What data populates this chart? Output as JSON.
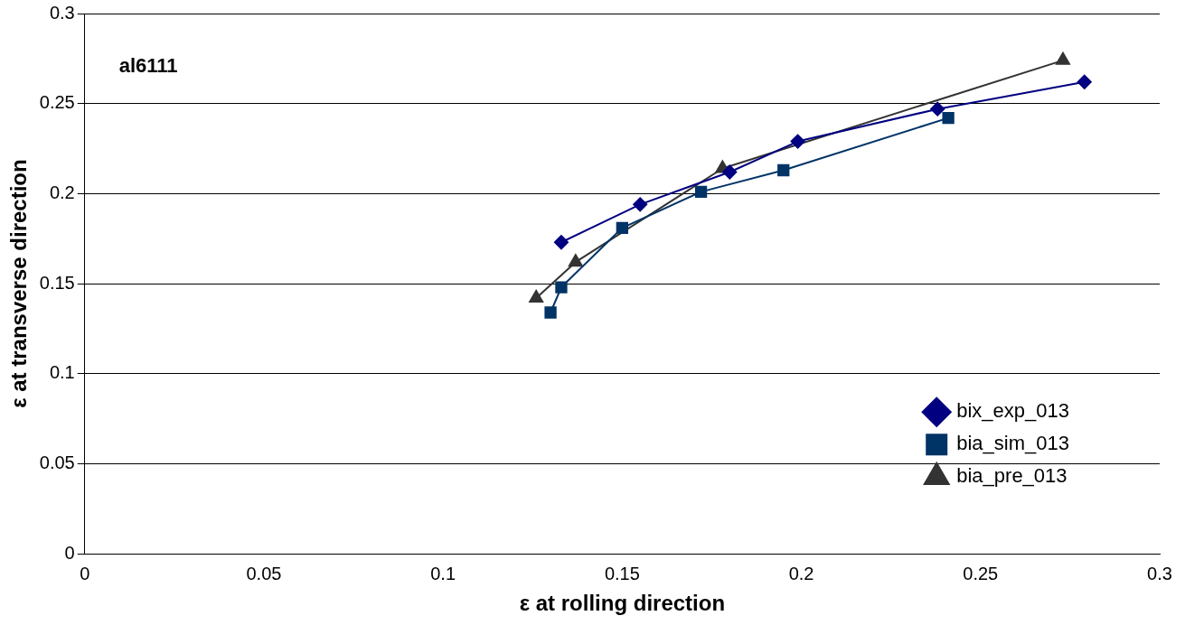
{
  "chart_data": {
    "type": "line",
    "xlabel": "ε at rolling direction",
    "ylabel": "ε at transverse direction",
    "annotations": [
      "al6111"
    ],
    "xlim": [
      0,
      0.3
    ],
    "xticks": [
      0,
      0.05,
      0.1,
      0.15,
      0.2,
      0.25,
      0.3
    ],
    "ylim": [
      0,
      0.3
    ],
    "yticks": [
      0,
      0.05,
      0.1,
      0.15,
      0.2,
      0.25,
      0.3
    ],
    "grid": "y",
    "legend": "bottom right",
    "series": [
      {
        "name": "bix_exp_013",
        "color": "#000080",
        "marker": "diamond",
        "x": [
          0.133,
          0.155,
          0.18,
          0.199,
          0.238,
          0.279
        ],
        "values": [
          0.173,
          0.194,
          0.212,
          0.229,
          0.247,
          0.262
        ]
      },
      {
        "name": "bia_sim_013",
        "color": "#003366",
        "marker": "square",
        "x": [
          0.13,
          0.133,
          0.15,
          0.172,
          0.195,
          0.241
        ],
        "values": [
          0.134,
          0.148,
          0.181,
          0.201,
          0.213,
          0.242
        ]
      },
      {
        "name": "bia_pre_013",
        "color": "#333333",
        "marker": "triangle",
        "x": [
          0.126,
          0.137,
          0.178,
          0.273
        ],
        "values": [
          0.142,
          0.162,
          0.214,
          0.274
        ]
      }
    ]
  }
}
